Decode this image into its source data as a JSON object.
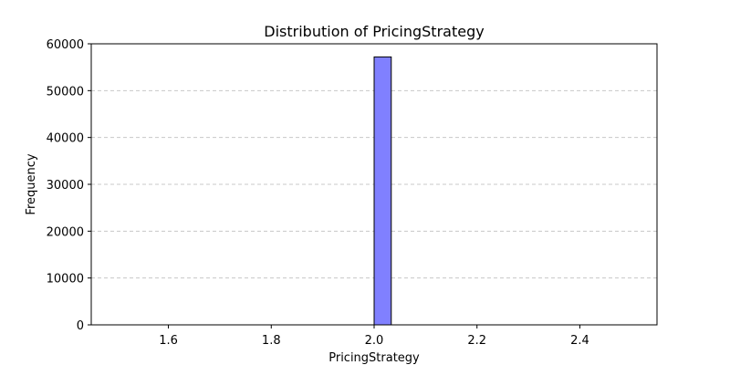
{
  "chart_data": {
    "type": "bar",
    "title": "Distribution of PricingStrategy",
    "xlabel": "PricingStrategy",
    "ylabel": "Frequency",
    "xlim": [
      1.45,
      2.55
    ],
    "ylim": [
      0,
      60000
    ],
    "x_ticks": [
      1.6,
      1.8,
      2.0,
      2.2,
      2.4
    ],
    "x_tick_labels": [
      "1.6",
      "1.8",
      "2.0",
      "2.2",
      "2.4"
    ],
    "y_ticks": [
      0,
      10000,
      20000,
      30000,
      40000,
      50000,
      60000
    ],
    "y_tick_labels": [
      "0",
      "10000",
      "20000",
      "30000",
      "40000",
      "50000",
      "60000"
    ],
    "bins": [
      {
        "x0": 2.0,
        "x1": 2.0333,
        "value": 57200
      }
    ],
    "baseline_range": [
      1.5,
      2.5
    ],
    "grid": "y-dashed",
    "colors": {
      "bar_fill": "#8080ff",
      "bar_edge": "#000000",
      "grid": "#c8c8c8"
    }
  }
}
